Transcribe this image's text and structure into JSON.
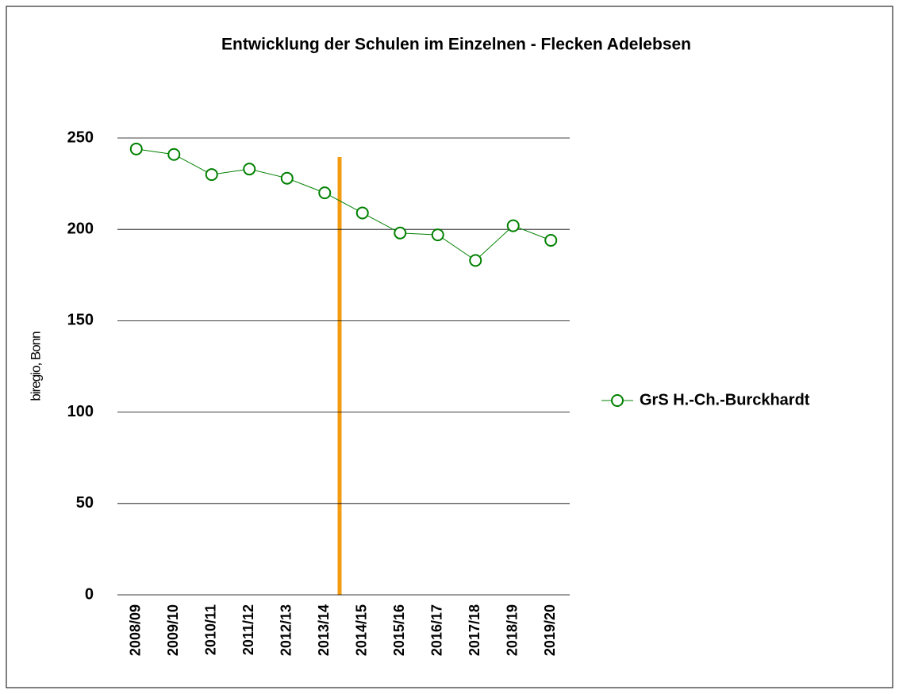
{
  "chart_data": {
    "type": "line",
    "title": "Entwicklung der Schulen im Einzelnen - Flecken Adelebsen",
    "y_label": "biregio, Bonn",
    "categories": [
      "2008/09",
      "2009/10",
      "2010/11",
      "2011/12",
      "2012/13",
      "2013/14",
      "2014/15",
      "2015/16",
      "2016/17",
      "2017/18",
      "2018/19",
      "2019/20"
    ],
    "series": [
      {
        "name": "GrS H.-Ch.-Burckhardt",
        "color": "#008000",
        "values": [
          244,
          241,
          230,
          233,
          228,
          220,
          209,
          198,
          197,
          183,
          202,
          194
        ]
      }
    ],
    "ylim": [
      0,
      250
    ],
    "yticks": [
      0,
      50,
      100,
      150,
      200,
      250
    ],
    "grid": true,
    "legend": "right"
  }
}
